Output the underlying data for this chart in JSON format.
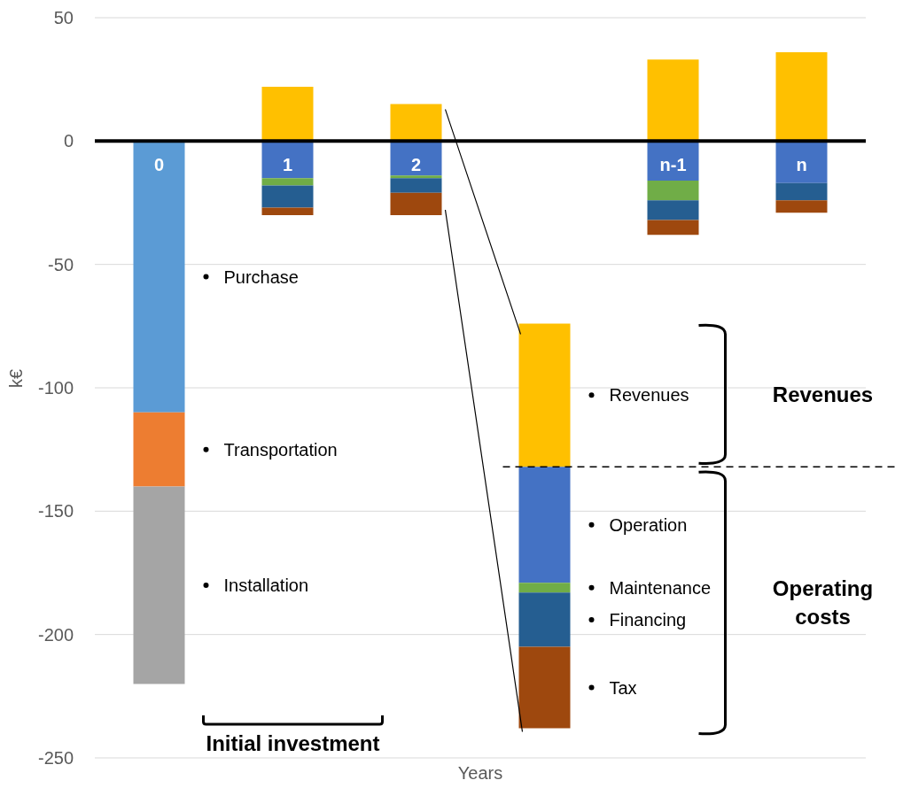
{
  "chart_data": {
    "type": "bar",
    "xlabel": "Years",
    "ylabel": "k€",
    "categories": [
      "0",
      "1",
      "2",
      null,
      "n-1",
      "n"
    ],
    "series": [
      {
        "name": "Purchase",
        "color": "#5b9bd5",
        "values": [
          -110,
          null,
          null,
          null,
          null,
          null
        ],
        "base": [
          0,
          null,
          null,
          null,
          null,
          null
        ]
      },
      {
        "name": "Transportation",
        "color": "#ed7d31",
        "values": [
          -30,
          null,
          null,
          null,
          null,
          null
        ],
        "base": [
          -110,
          null,
          null,
          null,
          null,
          null
        ]
      },
      {
        "name": "Installation",
        "color": "#a5a5a5",
        "values": [
          -80,
          null,
          null,
          null,
          null,
          null
        ],
        "base": [
          -140,
          null,
          null,
          null,
          null,
          null
        ]
      },
      {
        "name": "Revenues",
        "color": "#ffc000",
        "values": [
          null,
          22,
          15,
          58,
          33,
          36
        ],
        "base": [
          null,
          0,
          0,
          -132,
          0,
          0
        ]
      },
      {
        "name": "Operation",
        "color": "#4472c4",
        "values": [
          null,
          -15,
          -14,
          -47,
          -16,
          -17
        ],
        "base": [
          null,
          0,
          0,
          -132,
          0,
          0
        ]
      },
      {
        "name": "Maintenance",
        "color": "#70ad47",
        "values": [
          null,
          -3,
          -1,
          -4,
          -8,
          null
        ],
        "base": [
          null,
          -15,
          -14,
          -179,
          -16,
          null
        ]
      },
      {
        "name": "Financing",
        "color": "#255e91",
        "values": [
          null,
          -9,
          -6,
          -22,
          -8,
          -7
        ],
        "base": [
          null,
          -18,
          -15,
          -183,
          -24,
          -17
        ]
      },
      {
        "name": "Tax",
        "color": "#9e480e",
        "values": [
          null,
          -3,
          -9,
          -33,
          -6,
          -5
        ],
        "base": [
          null,
          -27,
          -21,
          -205,
          -32,
          -24
        ]
      }
    ],
    "ylim": [
      -250,
      50
    ],
    "yticks": [
      -250,
      -200,
      -150,
      -100,
      -50,
      0,
      50
    ],
    "grid": "y",
    "legend": false,
    "ref_lines": [
      {
        "axis": "y",
        "value": -132,
        "color": "#000000",
        "line_style": "dashed"
      }
    ],
    "annotations": [
      "Initial investment",
      "Revenues",
      "Operating costs"
    ]
  }
}
